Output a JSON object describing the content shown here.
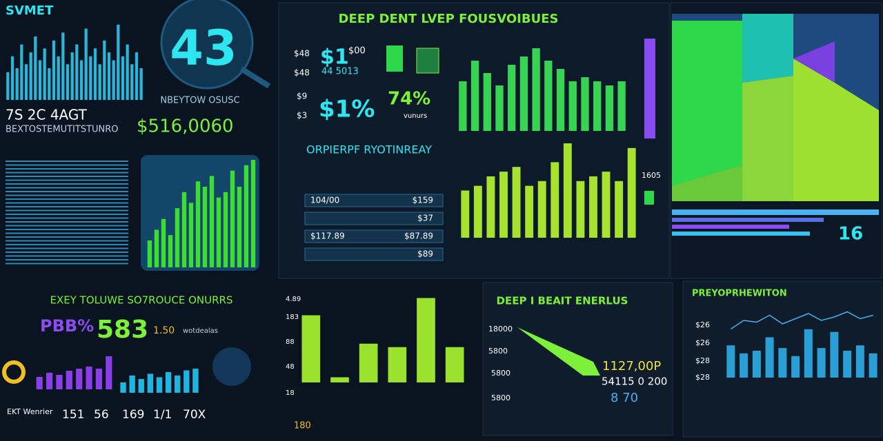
{
  "header": {
    "logo": "SVMET",
    "title": "DEEP DENT LVEP FOUSVOIBUES"
  },
  "top_left": {
    "badge": "43",
    "caption": "NBEYTOW OSUSC",
    "stat": "7S 2C 4AGT",
    "sub": "BEXTOSTEMUTITSTUNRO",
    "amount": "$516,0060"
  },
  "kpi": {
    "side_labels": [
      "$48",
      "$48",
      "$9",
      "$3"
    ],
    "big_a": "$1",
    "small_a": "$00",
    "small_b": "44 5013",
    "big_b": "$1%",
    "big_c": "74%",
    "tag": "vunurs"
  },
  "table": {
    "title": "ORPIERPF RYOTINREAY",
    "rows": [
      [
        "104/00",
        "$159"
      ],
      [
        "",
        "$37"
      ],
      [
        "$117.89",
        "$87.89"
      ],
      [
        "",
        "$89"
      ]
    ]
  },
  "right": {
    "axis_label": "1605",
    "big": "16"
  },
  "bottom_left": {
    "title": "EXEY TOLUWE SO7ROUCE ONURRS",
    "pct": "PBB%",
    "big": "583",
    "small": "1.50",
    "note": "wotdealas",
    "footer": [
      "EKT Wenrier",
      "151",
      "56",
      "169",
      "1/1",
      "70X"
    ]
  },
  "bottom_mid": {
    "yticks": [
      "4.89",
      "183",
      "88",
      "48",
      "18"
    ],
    "foot": "180"
  },
  "energy": {
    "title": "DEEP I BEAIT ENERLUS",
    "yticks": [
      "18000",
      "5800",
      "5800",
      "5800"
    ],
    "val_a": "1127,00P",
    "val_b": "54115 0 200",
    "val_c": "8 70"
  },
  "preview": {
    "title": "PREYOPRHEWITON",
    "yticks": [
      "$26",
      "$26",
      "$28",
      "$28"
    ]
  },
  "charts": [
    {
      "type": "bar",
      "color": "#2bb5d8",
      "ylim": [
        0,
        100
      ],
      "values": [
        35,
        55,
        40,
        70,
        45,
        60,
        80,
        50,
        65,
        40,
        75,
        55,
        85,
        45,
        60,
        70,
        50,
        90,
        55,
        65,
        45,
        75,
        60,
        50,
        95,
        55,
        70,
        45,
        60,
        40
      ]
    },
    {
      "type": "bar",
      "color": "#3ddc35",
      "ylim": [
        0,
        100
      ],
      "values": [
        25,
        35,
        45,
        30,
        55,
        70,
        60,
        80,
        75,
        85,
        65,
        70,
        90,
        75,
        95,
        100
      ]
    },
    {
      "type": "bar",
      "color": "#39d353",
      "ylim": [
        0,
        100
      ],
      "values": [
        60,
        85,
        70,
        55,
        80,
        90,
        100,
        85,
        75,
        60,
        65,
        60,
        55,
        60
      ]
    },
    {
      "type": "bar",
      "color": "#a6e22e",
      "ylim": [
        0,
        100
      ],
      "values": [
        50,
        55,
        65,
        70,
        75,
        55,
        60,
        80,
        100,
        60,
        65,
        70,
        60,
        95
      ]
    },
    {
      "type": "bar",
      "color": "#8a3ee8",
      "ylim": [
        0,
        100
      ],
      "values": [
        30,
        40,
        35,
        45,
        50,
        55,
        50,
        80
      ]
    },
    {
      "type": "bar",
      "color": "#1fb5e0",
      "ylim": [
        0,
        100
      ],
      "values": [
        30,
        50,
        40,
        55,
        45,
        60,
        50,
        65,
        70
      ]
    },
    {
      "type": "bar",
      "color": "#9be22e",
      "ylim": [
        0,
        100
      ],
      "values": [
        78,
        6,
        45,
        41,
        98,
        41
      ]
    },
    {
      "type": "bar",
      "color": "#2a9fd6",
      "ylim": [
        0,
        100
      ],
      "values": [
        60,
        45,
        50,
        75,
        55,
        40,
        90,
        55,
        85,
        50,
        60,
        45
      ]
    },
    {
      "type": "line",
      "color": "#4ab0f0",
      "ylim": [
        0,
        100
      ],
      "values": [
        45,
        70,
        65,
        85,
        60,
        75,
        90,
        70,
        80,
        95,
        75,
        85
      ]
    }
  ]
}
